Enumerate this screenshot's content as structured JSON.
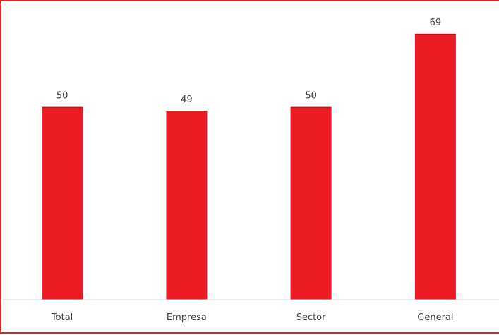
{
  "chart_data": {
    "type": "bar",
    "categories": [
      "Total",
      "Empresa",
      "Sector",
      "General"
    ],
    "values": [
      50,
      49,
      50,
      69
    ],
    "title": "",
    "xlabel": "",
    "ylabel": "",
    "ylim": [
      0,
      73
    ],
    "grid": false,
    "legend": "none",
    "data_labels": true,
    "colors": {
      "bar": "#ed1c24",
      "bar_edge": "#b01319",
      "axis": "#d9d9d9",
      "frame": "#d9262b",
      "text": "#404040"
    }
  }
}
